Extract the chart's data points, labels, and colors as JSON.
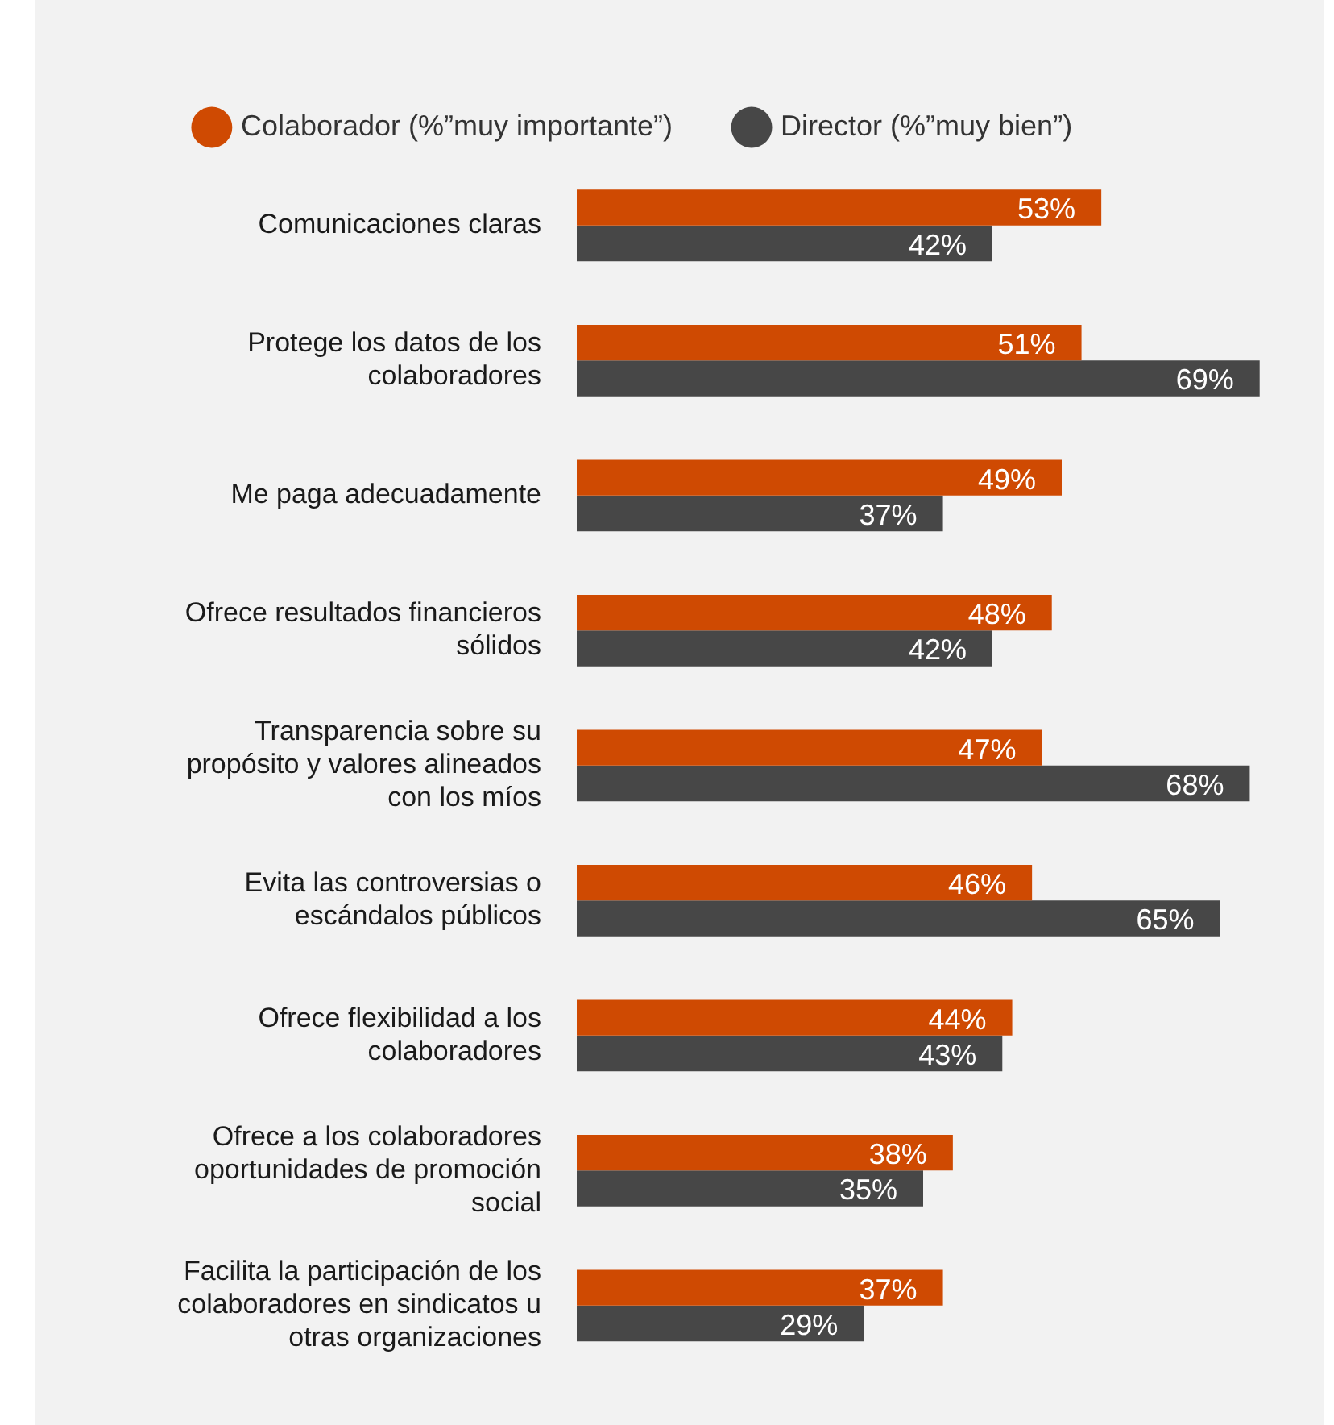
{
  "chart_data": {
    "type": "bar",
    "orientation": "horizontal",
    "legend": "top",
    "tick_labels": "y",
    "categories": [
      "Comunicaciones claras",
      "Protege los datos de los colaboradores",
      "Me paga adecuadamente",
      "Ofrece resultados financieros sólidos",
      "Transparencia sobre su propósito y valores alineados con los míos",
      "Evita las controversias o escándalos públicos",
      "Ofrece flexibilidad a los colaboradores",
      "Ofrece a los colaboradores oportunidades de promoción social",
      "Facilita la participación de los colaboradores en sindicatos u otras organizaciones"
    ],
    "series": [
      {
        "name": "Colaborador (%”muy importante”)",
        "color": "#cf4a02",
        "values": [
          53,
          51,
          49,
          48,
          47,
          46,
          44,
          38,
          37
        ],
        "value_labels": [
          "53%",
          "51%",
          "49%",
          "48%",
          "47%",
          "46%",
          "44%",
          "38%",
          "37%"
        ]
      },
      {
        "name": "Director (%”muy bien”)",
        "color": "#474747",
        "values": [
          42,
          69,
          37,
          42,
          68,
          65,
          43,
          35,
          29
        ],
        "value_labels": [
          "42%",
          "69%",
          "37%",
          "42%",
          "68%",
          "65%",
          "43%",
          "35%",
          "29%"
        ]
      }
    ]
  }
}
